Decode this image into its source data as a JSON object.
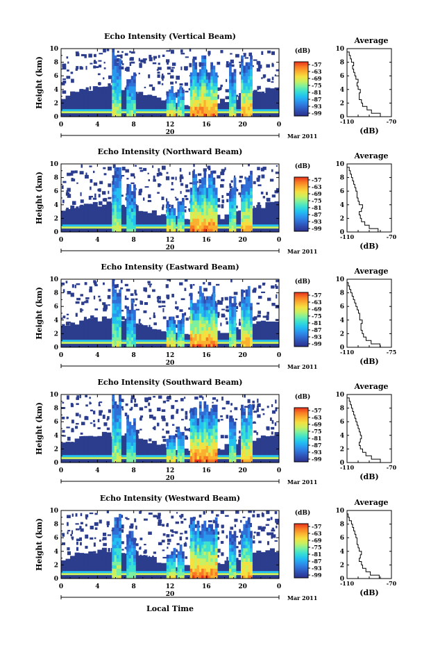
{
  "figure": {
    "xlabel": "Local Time",
    "date_label": "Mar 2011",
    "day_label": "20"
  },
  "colors": {
    "bg_echo": "#2b3d8c",
    "colorbar": [
      "#2b2f8c",
      "#2e4db0",
      "#2f6fd6",
      "#2a97ee",
      "#22c1f0",
      "#3ae0d0",
      "#7af0a0",
      "#c8f060",
      "#f6e040",
      "#fbb030",
      "#f87a24",
      "#e8301c"
    ]
  },
  "chart_data": [
    {
      "type": "heatmap",
      "title": "Echo Intensity (Vertical Beam)",
      "ylabel": "Height (km)",
      "x_ticks": [
        "0",
        "4",
        "8",
        "12",
        "16",
        "20",
        "0"
      ],
      "y_ticks": [
        "0",
        "2",
        "4",
        "6",
        "8",
        "10"
      ],
      "xlim": [
        0,
        24
      ],
      "ylim": [
        0,
        10
      ],
      "colorbar": {
        "label": "(dB)",
        "ticks": [
          "-57",
          "-63",
          "-69",
          "-75",
          "-81",
          "-87",
          "-93",
          "-99"
        ]
      },
      "average": {
        "title": "Average",
        "xlabel": "(dB)",
        "x_ticks": [
          "-110",
          "-70"
        ],
        "y_ticks": [
          "0",
          "2",
          "4",
          "6",
          "8",
          "10"
        ],
        "profile": [
          [
            -72,
            0
          ],
          [
            -80,
            0.5
          ],
          [
            -88,
            1
          ],
          [
            -92,
            1.5
          ],
          [
            -96,
            2
          ],
          [
            -97,
            2.5
          ],
          [
            -99,
            3
          ],
          [
            -99,
            3.5
          ],
          [
            -98,
            4
          ],
          [
            -100,
            4.5
          ],
          [
            -101,
            5
          ],
          [
            -100,
            5.5
          ],
          [
            -102,
            6
          ],
          [
            -103,
            6.5
          ],
          [
            -104,
            7
          ],
          [
            -105,
            7.5
          ],
          [
            -104,
            8
          ],
          [
            -106,
            8.5
          ],
          [
            -107,
            9
          ],
          [
            -108,
            9.5
          ],
          [
            -110,
            10
          ]
        ]
      }
    },
    {
      "type": "heatmap",
      "title": "Echo Intensity (Northward Beam)",
      "ylabel": "Height (km)",
      "x_ticks": [
        "0",
        "4",
        "8",
        "12",
        "16",
        "20",
        "0"
      ],
      "y_ticks": [
        "0",
        "2",
        "4",
        "6",
        "8",
        "10"
      ],
      "xlim": [
        0,
        24
      ],
      "ylim": [
        0,
        10
      ],
      "colorbar": {
        "label": "(dB)",
        "ticks": [
          "-57",
          "-63",
          "-69",
          "-75",
          "-81",
          "-87",
          "-93",
          "-99"
        ]
      },
      "average": {
        "title": "Average",
        "xlabel": "(dB)",
        "x_ticks": [
          "-110",
          "-70"
        ],
        "y_ticks": [
          "0",
          "2",
          "4",
          "6",
          "8",
          "10"
        ],
        "profile": [
          [
            -75,
            0
          ],
          [
            -82,
            0.5
          ],
          [
            -90,
            1
          ],
          [
            -94,
            1.5
          ],
          [
            -97,
            2
          ],
          [
            -98,
            2.5
          ],
          [
            -99,
            3
          ],
          [
            -97,
            3.5
          ],
          [
            -96,
            4
          ],
          [
            -99,
            4.5
          ],
          [
            -100,
            5
          ],
          [
            -101,
            5.5
          ],
          [
            -101,
            6
          ],
          [
            -102,
            6.5
          ],
          [
            -103,
            7
          ],
          [
            -104,
            7.5
          ],
          [
            -105,
            8
          ],
          [
            -106,
            8.5
          ],
          [
            -107,
            9
          ],
          [
            -108,
            9.5
          ],
          [
            -110,
            10
          ]
        ]
      }
    },
    {
      "type": "heatmap",
      "title": "Echo Intensity (Eastward Beam)",
      "ylabel": "Height (km)",
      "x_ticks": [
        "0",
        "4",
        "8",
        "12",
        "16",
        "20",
        "0"
      ],
      "y_ticks": [
        "0",
        "2",
        "4",
        "6",
        "8",
        "10"
      ],
      "xlim": [
        0,
        24
      ],
      "ylim": [
        0,
        10
      ],
      "colorbar": {
        "label": "(dB)",
        "ticks": [
          "-57",
          "-63",
          "-69",
          "-75",
          "-81",
          "-87",
          "-93",
          "-99"
        ]
      },
      "average": {
        "title": "Average",
        "xlabel": "(dB)",
        "x_ticks": [
          "-110",
          "-75"
        ],
        "y_ticks": [
          "0",
          "2",
          "4",
          "6",
          "8",
          "10"
        ],
        "profile": [
          [
            -77,
            0
          ],
          [
            -84,
            0.5
          ],
          [
            -91,
            1
          ],
          [
            -95,
            1.5
          ],
          [
            -97,
            2
          ],
          [
            -98,
            2.5
          ],
          [
            -99,
            3
          ],
          [
            -99,
            3.5
          ],
          [
            -98,
            4
          ],
          [
            -100,
            4.5
          ],
          [
            -100,
            5
          ],
          [
            -101,
            5.5
          ],
          [
            -102,
            6
          ],
          [
            -103,
            6.5
          ],
          [
            -104,
            7
          ],
          [
            -105,
            7.5
          ],
          [
            -106,
            8
          ],
          [
            -107,
            8.5
          ],
          [
            -108,
            9
          ],
          [
            -109,
            9.5
          ],
          [
            -110,
            10
          ]
        ]
      }
    },
    {
      "type": "heatmap",
      "title": "Echo Intensity (Southward Beam)",
      "ylabel": "Height (km)",
      "x_ticks": [
        "0",
        "4",
        "8",
        "12",
        "16",
        "20",
        "0"
      ],
      "y_ticks": [
        "0",
        "2",
        "4",
        "6",
        "8",
        "10"
      ],
      "xlim": [
        0,
        24
      ],
      "ylim": [
        0,
        10
      ],
      "colorbar": {
        "label": "(dB)",
        "ticks": [
          "-57",
          "-63",
          "-69",
          "-75",
          "-81",
          "-87",
          "-93",
          "-99"
        ]
      },
      "average": {
        "title": "Average",
        "xlabel": "(dB)",
        "x_ticks": [
          "-110",
          "-70"
        ],
        "y_ticks": [
          "0",
          "2",
          "4",
          "6",
          "8",
          "10"
        ],
        "profile": [
          [
            -73,
            0
          ],
          [
            -80,
            0.5
          ],
          [
            -88,
            1
          ],
          [
            -93,
            1.5
          ],
          [
            -96,
            2
          ],
          [
            -98,
            2.5
          ],
          [
            -99,
            3
          ],
          [
            -98,
            3.5
          ],
          [
            -97,
            4
          ],
          [
            -98,
            4.5
          ],
          [
            -99,
            5
          ],
          [
            -100,
            5.5
          ],
          [
            -101,
            6
          ],
          [
            -102,
            6.5
          ],
          [
            -103,
            7
          ],
          [
            -104,
            7.5
          ],
          [
            -105,
            8
          ],
          [
            -106,
            8.5
          ],
          [
            -107,
            9
          ],
          [
            -108,
            9.5
          ],
          [
            -110,
            10
          ]
        ]
      }
    },
    {
      "type": "heatmap",
      "title": "Echo Intensity (Westward Beam)",
      "ylabel": "Height (km)",
      "x_ticks": [
        "0",
        "4",
        "8",
        "12",
        "16",
        "20",
        "0"
      ],
      "y_ticks": [
        "0",
        "2",
        "4",
        "6",
        "8",
        "10"
      ],
      "xlim": [
        0,
        24
      ],
      "ylim": [
        0,
        10
      ],
      "colorbar": {
        "label": "(dB)",
        "ticks": [
          "-57",
          "-63",
          "-69",
          "-75",
          "-81",
          "-87",
          "-93",
          "-99"
        ]
      },
      "average": {
        "title": "Average",
        "xlabel": "(dB)",
        "x_ticks": [
          "-110",
          "-70"
        ],
        "y_ticks": [
          "0",
          "2",
          "4",
          "6",
          "8",
          "10"
        ],
        "profile": [
          [
            -74,
            0
          ],
          [
            -81,
            0.5
          ],
          [
            -89,
            1
          ],
          [
            -93,
            1.5
          ],
          [
            -96,
            2
          ],
          [
            -97,
            2.5
          ],
          [
            -99,
            3
          ],
          [
            -98,
            3.5
          ],
          [
            -97,
            4
          ],
          [
            -99,
            4.5
          ],
          [
            -100,
            5
          ],
          [
            -101,
            5.5
          ],
          [
            -101,
            6
          ],
          [
            -102,
            6.5
          ],
          [
            -103,
            7
          ],
          [
            -104,
            7.5
          ],
          [
            -105,
            8
          ],
          [
            -106,
            8.5
          ],
          [
            -108,
            9
          ],
          [
            -109,
            9.5
          ],
          [
            -110,
            10
          ]
        ]
      }
    }
  ]
}
